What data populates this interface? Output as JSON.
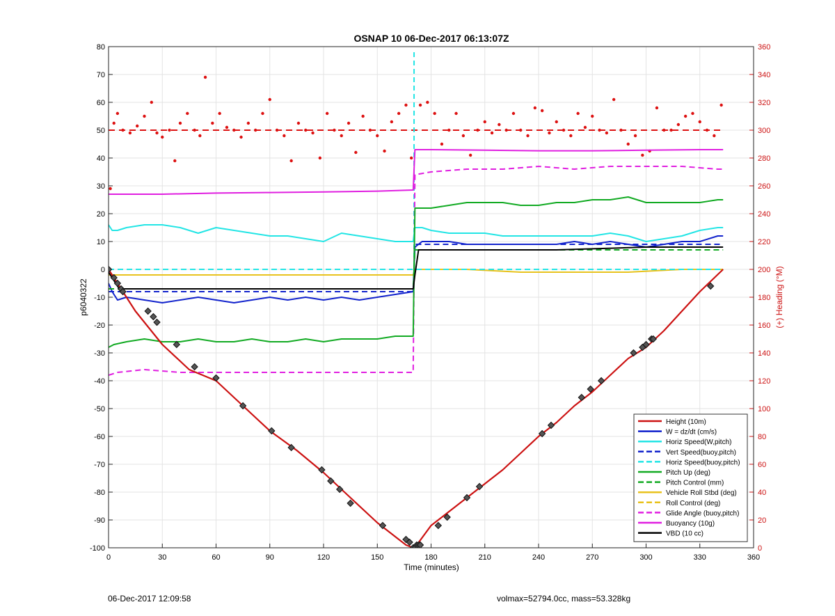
{
  "chart_data": {
    "type": "line",
    "title": "OSNAP 10 06-Dec-2017 06:13:07Z",
    "xlabel": "Time (minutes)",
    "ylabel_left": "p6040322",
    "ylabel_right": "(+) Heading (°M)",
    "xlim": [
      0,
      360
    ],
    "ylim_left": [
      -100,
      80
    ],
    "ylim_right": [
      0,
      360
    ],
    "xticks": [
      0,
      30,
      60,
      90,
      120,
      150,
      180,
      210,
      240,
      270,
      300,
      330,
      360
    ],
    "yticks_left": [
      80,
      70,
      60,
      50,
      40,
      30,
      20,
      10,
      0,
      -10,
      -20,
      -30,
      -40,
      -50,
      -60,
      -70,
      -80,
      -90,
      -100
    ],
    "yticks_right": [
      360,
      340,
      320,
      300,
      280,
      260,
      240,
      220,
      200,
      180,
      160,
      140,
      120,
      100,
      80,
      60,
      40,
      20,
      0
    ],
    "grid": true,
    "legend_position": "bottom-right",
    "series": [
      {
        "name": "Height (10m)",
        "color": "#cc1111",
        "style": "solid",
        "axis": "left",
        "x": [
          0,
          15,
          30,
          45,
          60,
          75,
          90,
          105,
          120,
          135,
          150,
          160,
          166,
          170,
          172,
          180,
          190,
          200,
          210,
          220,
          230,
          240,
          250,
          260,
          270,
          280,
          290,
          300,
          310,
          320,
          330,
          343
        ],
        "y": [
          0,
          -15,
          -27,
          -36,
          -40,
          -49,
          -58,
          -65,
          -73,
          -82,
          -91,
          -96,
          -99,
          -100,
          -99,
          -92,
          -87,
          -82,
          -77,
          -72,
          -66,
          -60,
          -55,
          -49,
          -44,
          -38,
          -32,
          -28,
          -22,
          -15,
          -8,
          0
        ]
      },
      {
        "name": "W = dz/dt (cm/s)",
        "color": "#1122cc",
        "style": "solid",
        "axis": "left",
        "x": [
          0,
          2,
          5,
          10,
          20,
          30,
          40,
          50,
          60,
          70,
          80,
          90,
          100,
          110,
          120,
          130,
          140,
          150,
          160,
          170,
          171,
          175,
          180,
          190,
          200,
          210,
          220,
          230,
          240,
          250,
          260,
          270,
          280,
          290,
          300,
          310,
          320,
          330,
          340,
          343
        ],
        "y": [
          -5,
          -8,
          -11,
          -10,
          -11,
          -12,
          -11,
          -10,
          -11,
          -12,
          -11,
          -10,
          -11,
          -10,
          -11,
          -10,
          -11,
          -10,
          -9,
          -8,
          8,
          10,
          10,
          10,
          9,
          9,
          9,
          9,
          9,
          9,
          10,
          9,
          10,
          9,
          8,
          9,
          10,
          10,
          12,
          12
        ]
      },
      {
        "name": "Horiz Speed(W,pitch)",
        "color": "#22e5e5",
        "style": "solid",
        "axis": "left",
        "x": [
          0,
          2,
          5,
          10,
          20,
          30,
          40,
          50,
          60,
          70,
          80,
          90,
          100,
          110,
          120,
          130,
          140,
          150,
          160,
          170,
          171,
          175,
          180,
          190,
          200,
          210,
          220,
          230,
          240,
          250,
          260,
          270,
          280,
          290,
          300,
          310,
          320,
          330,
          340,
          343
        ],
        "y": [
          16,
          14,
          14,
          15,
          16,
          16,
          15,
          13,
          15,
          14,
          13,
          12,
          12,
          11,
          10,
          13,
          12,
          11,
          10,
          10,
          15,
          15,
          14,
          13,
          13,
          13,
          12,
          12,
          12,
          12,
          12,
          12,
          13,
          12,
          10,
          11,
          12,
          14,
          15,
          15
        ]
      },
      {
        "name": "Vert Speed(buoy,pitch)",
        "color": "#1122cc",
        "style": "dashed",
        "axis": "left",
        "x": [
          0,
          170,
          171,
          343
        ],
        "y": [
          -8,
          -8,
          9,
          9
        ]
      },
      {
        "name": "Horiz Speed(buoy,pitch)",
        "color": "#22e5e5",
        "style": "dashed",
        "axis": "left",
        "x": [
          0,
          170,
          171,
          343
        ],
        "y": [
          0,
          0,
          0,
          0
        ]
      },
      {
        "name": "Pitch Up (deg)",
        "color": "#11aa22",
        "style": "solid",
        "axis": "left",
        "x": [
          0,
          3,
          10,
          20,
          30,
          40,
          50,
          60,
          70,
          80,
          90,
          100,
          110,
          120,
          130,
          140,
          150,
          160,
          170,
          171,
          175,
          180,
          190,
          200,
          210,
          220,
          230,
          240,
          250,
          260,
          270,
          280,
          290,
          300,
          310,
          320,
          330,
          340,
          343
        ],
        "y": [
          -28,
          -27,
          -26,
          -25,
          -26,
          -26,
          -25,
          -26,
          -26,
          -25,
          -26,
          -26,
          -25,
          -26,
          -25,
          -25,
          -25,
          -24,
          -24,
          22,
          22,
          22,
          23,
          24,
          24,
          24,
          23,
          23,
          24,
          24,
          25,
          25,
          26,
          24,
          24,
          24,
          24,
          25,
          25
        ]
      },
      {
        "name": "Pitch Control (mm)",
        "color": "#11aa22",
        "style": "dashed",
        "axis": "left",
        "x": [
          0,
          170,
          171,
          343
        ],
        "y": [
          -7,
          -7,
          7,
          7
        ]
      },
      {
        "name": "Vehicle Roll Stbd (deg)",
        "color": "#e8c21c",
        "style": "solid",
        "axis": "left",
        "x": [
          0,
          20,
          40,
          60,
          80,
          100,
          120,
          140,
          160,
          170,
          171,
          200,
          230,
          260,
          290,
          320,
          343
        ],
        "y": [
          -2,
          -2,
          -2,
          -2,
          -2,
          -2,
          -2,
          -2,
          -2,
          -2,
          0,
          0,
          -1,
          -1,
          -1,
          0,
          0
        ]
      },
      {
        "name": "Roll Control (deg)",
        "color": "#e8c21c",
        "style": "dashed",
        "axis": "left",
        "x": [
          0,
          170,
          171,
          343
        ],
        "y": [
          0,
          0,
          0,
          0
        ]
      },
      {
        "name": "Glide Angle (buoy,pitch)",
        "color": "#e01ee0",
        "style": "dashed",
        "axis": "left",
        "x": [
          0,
          5,
          20,
          40,
          60,
          80,
          100,
          120,
          140,
          160,
          170,
          171,
          180,
          200,
          220,
          240,
          260,
          280,
          300,
          320,
          340,
          343
        ],
        "y": [
          -38,
          -37,
          -36,
          -37,
          -37,
          -37,
          -37,
          -37,
          -37,
          -37,
          -37,
          34,
          35,
          36,
          36,
          37,
          36,
          37,
          37,
          37,
          36,
          36
        ]
      },
      {
        "name": "Buoyancy (10g)",
        "color": "#e01ee0",
        "style": "solid",
        "axis": "left",
        "x": [
          0,
          30,
          60,
          90,
          120,
          150,
          170,
          171,
          180,
          210,
          240,
          270,
          300,
          330,
          343
        ],
        "y": [
          27,
          27,
          27.4,
          27.6,
          27.8,
          28.1,
          28.5,
          43,
          43,
          42.8,
          42.6,
          42.6,
          42.8,
          43,
          43
        ]
      },
      {
        "name": "VBD (10 cc)",
        "color": "#000000",
        "style": "solid",
        "axis": "left",
        "x": [
          0,
          3,
          6,
          170,
          171,
          173,
          200,
          250,
          300,
          343
        ],
        "y": [
          -1,
          -4,
          -7,
          -7,
          -2,
          7,
          7,
          7,
          8,
          8
        ]
      }
    ],
    "heading": {
      "name": "Heading",
      "axis": "right",
      "color": "#dd1111",
      "reference": 300,
      "x": [
        1,
        3,
        5,
        8,
        12,
        16,
        20,
        24,
        27,
        30,
        34,
        37,
        40,
        44,
        48,
        51,
        54,
        58,
        62,
        66,
        70,
        74,
        78,
        82,
        86,
        90,
        94,
        98,
        102,
        106,
        110,
        114,
        118,
        122,
        126,
        130,
        134,
        138,
        142,
        146,
        150,
        154,
        158,
        162,
        166,
        169,
        174,
        178,
        182,
        186,
        190,
        194,
        198,
        202,
        206,
        210,
        214,
        218,
        222,
        226,
        230,
        234,
        238,
        242,
        246,
        250,
        254,
        258,
        262,
        266,
        270,
        274,
        278,
        282,
        286,
        290,
        294,
        298,
        302,
        306,
        310,
        314,
        318,
        322,
        326,
        330,
        334,
        338,
        342
      ],
      "y": [
        258,
        305,
        312,
        300,
        298,
        303,
        310,
        320,
        298,
        295,
        300,
        278,
        305,
        312,
        300,
        296,
        338,
        305,
        312,
        302,
        300,
        295,
        305,
        300,
        312,
        322,
        300,
        296,
        278,
        305,
        300,
        298,
        280,
        312,
        300,
        296,
        305,
        284,
        310,
        300,
        296,
        285,
        306,
        312,
        318,
        280,
        318,
        320,
        312,
        290,
        300,
        312,
        296,
        282,
        300,
        306,
        298,
        304,
        300,
        312,
        300,
        296,
        316,
        314,
        298,
        306,
        300,
        296,
        312,
        302,
        310,
        300,
        298,
        322,
        300,
        290,
        296,
        282,
        285,
        316,
        300,
        300,
        304,
        310,
        312,
        306,
        300,
        296,
        318
      ]
    },
    "markers": {
      "name": "Height markers",
      "x": [
        0,
        3,
        5,
        7,
        8,
        22,
        25,
        27,
        38,
        48,
        60,
        75,
        91,
        102,
        119,
        124,
        129,
        135,
        153,
        166,
        168,
        170,
        171,
        172,
        173,
        174,
        184,
        189,
        200,
        207,
        242,
        247,
        264,
        269,
        275,
        293,
        298,
        300,
        303,
        304,
        336
      ],
      "y": [
        0,
        -3,
        -5,
        -7,
        -8,
        -15,
        -17,
        -19,
        -27,
        -35,
        -39,
        -49,
        -58,
        -64,
        -72,
        -76,
        -79,
        -84,
        -92,
        -97,
        -98,
        -100,
        -100,
        -99,
        -99,
        -99,
        -92,
        -89,
        -82,
        -78,
        -59,
        -56,
        -46,
        -43,
        -40,
        -30,
        -28,
        -27,
        -25,
        -25,
        -6
      ]
    },
    "legend": [
      {
        "label": "Height (10m)",
        "color": "#cc1111",
        "style": "solid"
      },
      {
        "label": "W = dz/dt (cm/s)",
        "color": "#1122cc",
        "style": "solid"
      },
      {
        "label": "Horiz Speed(W,pitch)",
        "color": "#22e5e5",
        "style": "solid"
      },
      {
        "label": "Vert Speed(buoy,pitch)",
        "color": "#1122cc",
        "style": "dashed"
      },
      {
        "label": "Horiz Speed(buoy,pitch)",
        "color": "#22e5e5",
        "style": "dashed"
      },
      {
        "label": "Pitch Up (deg)",
        "color": "#11aa22",
        "style": "solid"
      },
      {
        "label": "Pitch Control (mm)",
        "color": "#11aa22",
        "style": "dashed"
      },
      {
        "label": "Vehicle Roll Stbd (deg)",
        "color": "#e8c21c",
        "style": "solid"
      },
      {
        "label": "Roll Control (deg)",
        "color": "#e8c21c",
        "style": "dashed"
      },
      {
        "label": "Glide Angle (buoy,pitch)",
        "color": "#e01ee0",
        "style": "dashed"
      },
      {
        "label": "Buoyancy (10g)",
        "color": "#e01ee0",
        "style": "solid"
      },
      {
        "label": "VBD (10 cc)",
        "color": "#000000",
        "style": "solid"
      }
    ]
  },
  "footer": {
    "left": "06-Dec-2017 12:09:58",
    "right": "volmax=52794.0cc, mass=53.328kg"
  }
}
